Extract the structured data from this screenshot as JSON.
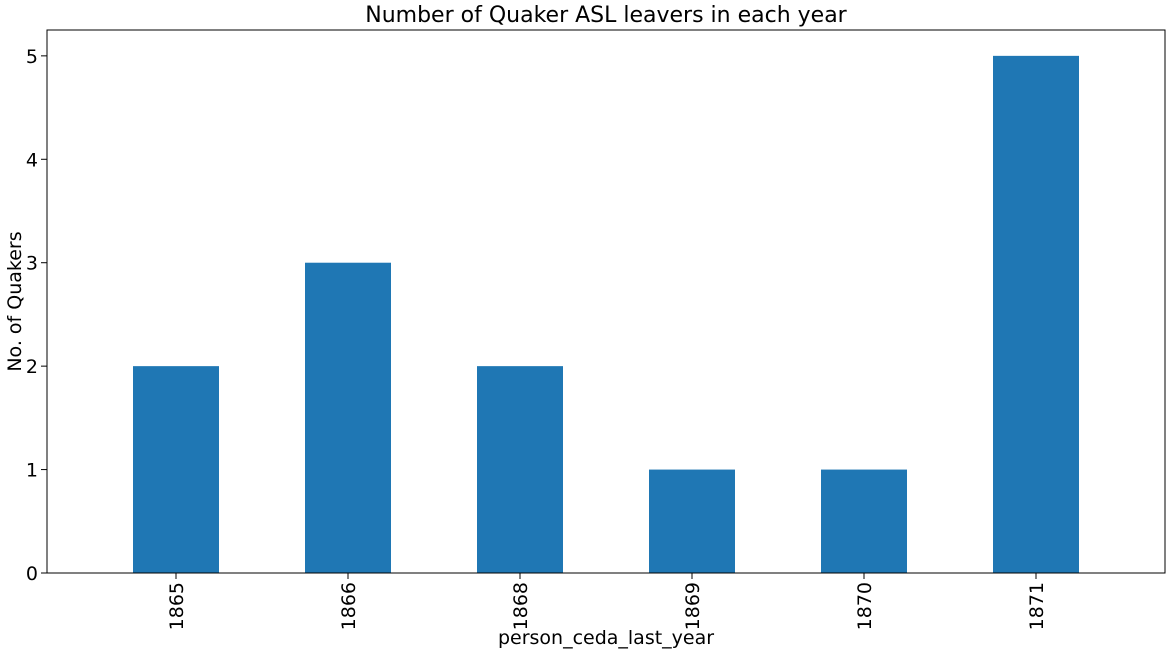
{
  "chart_data": {
    "type": "bar",
    "title": "Number of Quaker ASL leavers in each year",
    "xlabel": "person_ceda_last_year",
    "ylabel": "No. of Quakers",
    "categories": [
      "1865",
      "1866",
      "1868",
      "1869",
      "1870",
      "1871"
    ],
    "values": [
      2,
      3,
      2,
      1,
      1,
      5
    ],
    "ylim": [
      0,
      5.25
    ],
    "yticks": [
      0,
      1,
      2,
      3,
      4,
      5
    ],
    "grid": false,
    "legend": "none",
    "bar_color": "#1f77b4"
  }
}
